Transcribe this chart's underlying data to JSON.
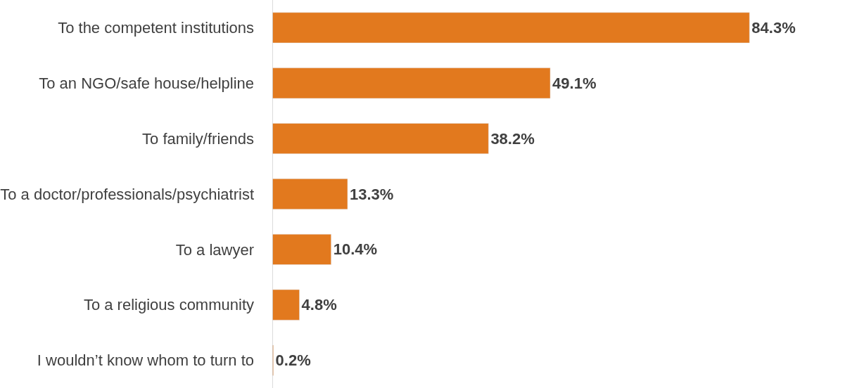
{
  "chart_data": {
    "type": "bar",
    "orientation": "horizontal",
    "categories": [
      "To the competent institutions",
      "To an NGO/safe house/helpline",
      "To family/friends",
      "To a doctor/professionals/psychiatrist",
      "To a lawyer",
      "To a religious community",
      "I wouldn’t know whom to turn to"
    ],
    "values": [
      84.3,
      49.1,
      38.2,
      13.3,
      10.4,
      4.8,
      0.2
    ],
    "value_labels": [
      "84.3%",
      "49.1%",
      "38.2%",
      "13.3%",
      "10.4%",
      "4.8%",
      "0.2%"
    ],
    "color": "#e2791e",
    "tick_labels": "y",
    "legend": false
  }
}
